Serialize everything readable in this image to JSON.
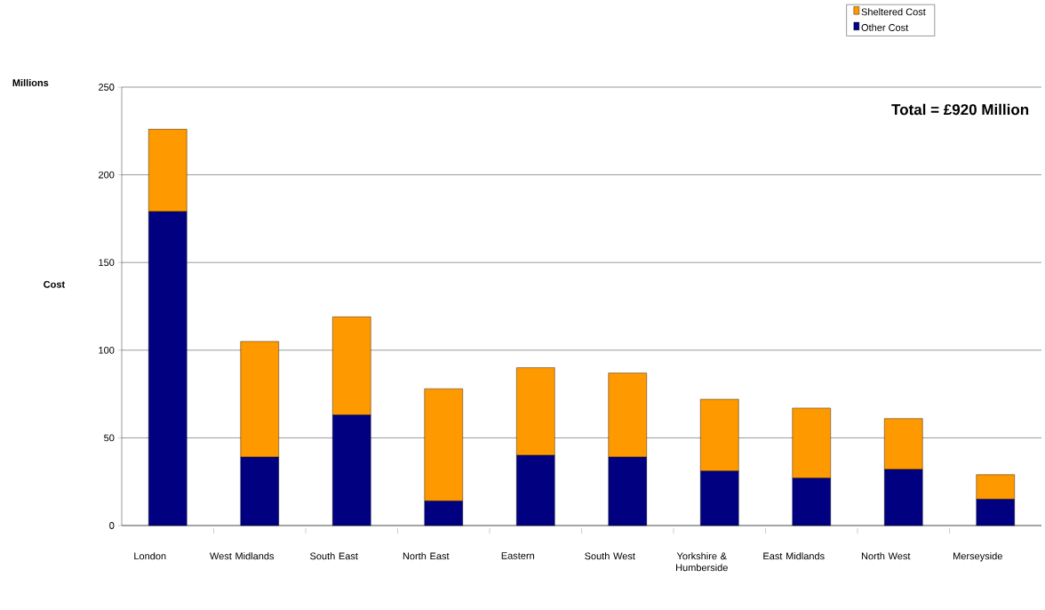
{
  "chart_data": {
    "type": "bar",
    "stacked": true,
    "ylabel": "Cost",
    "categories": [
      "London",
      "West Midlands",
      "South East",
      "North East",
      "Eastern",
      "South West",
      "Yorkshire & Humberside",
      "East Midlands",
      "North West",
      "Merseyside"
    ],
    "series": [
      {
        "name": "Other Cost",
        "color": "#000080",
        "values": [
          179,
          39,
          63,
          14,
          40,
          39,
          31,
          27,
          32,
          15
        ]
      },
      {
        "name": "Sheltered Cost",
        "color": "#ff9900",
        "values": [
          47,
          66,
          56,
          64,
          50,
          48,
          41,
          40,
          29,
          14
        ]
      }
    ],
    "ylim": [
      0,
      250
    ],
    "yticks": [
      0,
      50,
      100,
      150,
      200,
      250
    ],
    "grid": "y",
    "legend": "top right",
    "annotations": [
      "Total = £920 Million",
      "Millions"
    ]
  }
}
